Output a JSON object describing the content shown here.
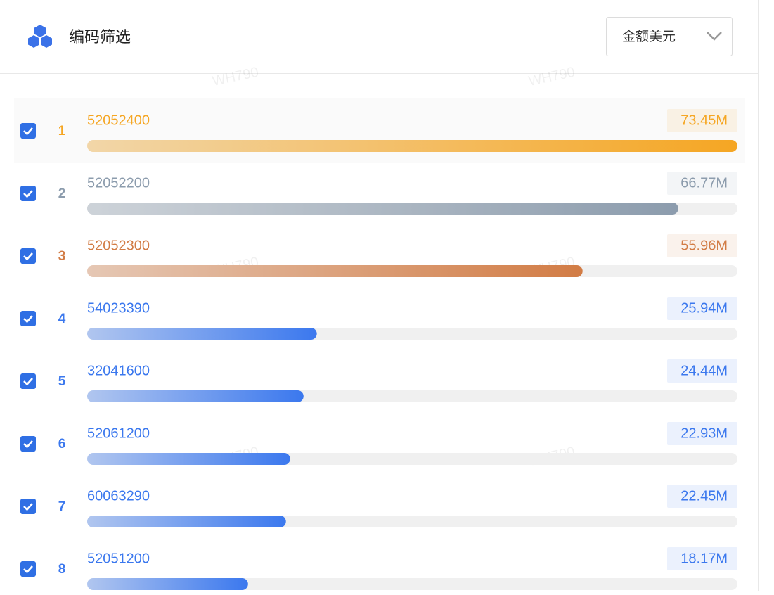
{
  "header": {
    "title": "编码筛选"
  },
  "dropdown": {
    "label": "金额美元"
  },
  "watermark": "WH790",
  "items": [
    {
      "rank": 1,
      "code": "52052400",
      "value": 73.45,
      "value_label": "73.45M",
      "color": "#f5a623"
    },
    {
      "rank": 2,
      "code": "52052200",
      "value": 66.77,
      "value_label": "66.77M",
      "color": "#8c9cad"
    },
    {
      "rank": 3,
      "code": "52052300",
      "value": 55.96,
      "value_label": "55.96M",
      "color": "#d27c45"
    },
    {
      "rank": 4,
      "code": "54023390",
      "value": 25.94,
      "value_label": "25.94M",
      "color": "#3b78ee"
    },
    {
      "rank": 5,
      "code": "32041600",
      "value": 24.44,
      "value_label": "24.44M",
      "color": "#3b78ee"
    },
    {
      "rank": 6,
      "code": "52061200",
      "value": 22.93,
      "value_label": "22.93M",
      "color": "#3b78ee"
    },
    {
      "rank": 7,
      "code": "60063290",
      "value": 22.45,
      "value_label": "22.45M",
      "color": "#3b78ee"
    },
    {
      "rank": 8,
      "code": "52051200",
      "value": 18.17,
      "value_label": "18.17M",
      "color": "#3b78ee"
    }
  ]
}
